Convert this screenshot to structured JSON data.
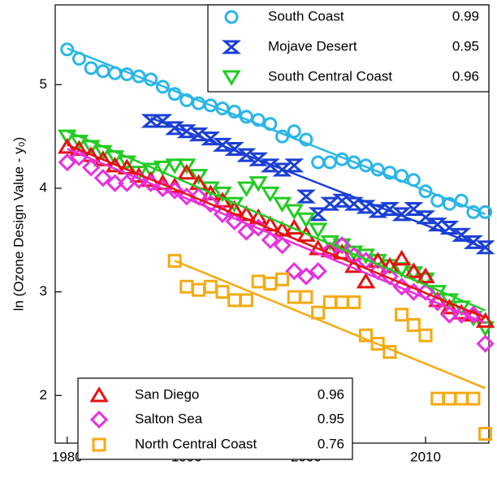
{
  "chart_data": {
    "type": "scatter",
    "y_label": "ln (Ozone Design Value - y₀)",
    "xlim": [
      1979,
      2015.3
    ],
    "xticks": [
      1980,
      1990,
      2000,
      2010
    ],
    "ylim": [
      1.54,
      5.77
    ],
    "yticks": [
      2,
      3,
      4,
      5
    ],
    "series": [
      {
        "name": "South Coast",
        "color": "#29b6e8",
        "marker": "circle",
        "legend": "upper right",
        "r": 0.99,
        "x": [
          1980,
          1981,
          1982,
          1983,
          1984,
          1985,
          1986,
          1987,
          1988,
          1989,
          1990,
          1991,
          1992,
          1993,
          1994,
          1995,
          1996,
          1997,
          1998,
          1999,
          2000,
          2001,
          2002,
          2003,
          2004,
          2005,
          2006,
          2007,
          2008,
          2009,
          2010,
          2011,
          2012,
          2013,
          2014,
          2015
        ],
        "values": [
          5.34,
          5.25,
          5.16,
          5.13,
          5.11,
          5.1,
          5.08,
          5.05,
          4.98,
          4.91,
          4.85,
          4.82,
          4.8,
          4.77,
          4.74,
          4.69,
          4.66,
          4.62,
          4.5,
          4.55,
          4.47,
          4.25,
          4.25,
          4.28,
          4.25,
          4.22,
          4.18,
          4.15,
          4.12,
          4.08,
          3.97,
          3.88,
          3.85,
          3.88,
          3.77,
          3.77
        ],
        "fit": {
          "x": [
            1980,
            2015
          ],
          "values": [
            5.35,
            3.75
          ]
        }
      },
      {
        "name": "Mojave Desert",
        "color": "#1a3fd6",
        "marker": "hourglass",
        "legend": "upper right",
        "r": 0.95,
        "x": [
          1987,
          1988,
          1989,
          1990,
          1991,
          1992,
          1993,
          1994,
          1995,
          1996,
          1997,
          1998,
          1999,
          2000,
          2001,
          2002,
          2003,
          2004,
          2005,
          2006,
          2007,
          2008,
          2009,
          2010,
          2011,
          2012,
          2013,
          2014,
          2015
        ],
        "values": [
          4.65,
          4.65,
          4.58,
          4.55,
          4.52,
          4.48,
          4.42,
          4.38,
          4.32,
          4.28,
          4.22,
          4.18,
          4.22,
          3.92,
          3.75,
          3.85,
          3.88,
          3.85,
          3.82,
          3.78,
          3.8,
          3.75,
          3.8,
          3.72,
          3.65,
          3.62,
          3.55,
          3.48,
          3.43
        ],
        "fit": {
          "x": [
            1987,
            2015
          ],
          "values": [
            4.68,
            3.42
          ]
        }
      },
      {
        "name": "South Central Coast",
        "color": "#22cc22",
        "marker": "triangle-down",
        "legend": "upper right",
        "r": 0.96,
        "x": [
          1980,
          1981,
          1982,
          1983,
          1984,
          1985,
          1986,
          1987,
          1988,
          1989,
          1990,
          1991,
          1992,
          1993,
          1994,
          1995,
          1996,
          1997,
          1998,
          1999,
          2000,
          2001,
          2002,
          2003,
          2004,
          2005,
          2006,
          2007,
          2008,
          2009,
          2010,
          2011,
          2012,
          2013,
          2014,
          2015
        ],
        "values": [
          4.5,
          4.45,
          4.4,
          4.35,
          4.3,
          4.25,
          4.15,
          4.18,
          4.2,
          4.22,
          4.22,
          4.12,
          4.0,
          3.95,
          3.85,
          4.0,
          4.05,
          3.95,
          3.85,
          3.78,
          3.7,
          3.6,
          3.48,
          3.45,
          3.38,
          3.35,
          3.3,
          3.25,
          3.22,
          3.18,
          3.12,
          3.0,
          2.92,
          2.85,
          2.75,
          2.65
        ],
        "fit": {
          "x": [
            1980,
            2015
          ],
          "values": [
            4.55,
            2.82
          ]
        }
      },
      {
        "name": "San Diego",
        "color": "#e81010",
        "marker": "triangle-up",
        "legend": "lower left",
        "r": 0.96,
        "x": [
          1980,
          1981,
          1982,
          1983,
          1984,
          1985,
          1986,
          1987,
          1988,
          1989,
          1990,
          1991,
          1992,
          1993,
          1994,
          1995,
          1996,
          1997,
          1998,
          1999,
          2000,
          2001,
          2002,
          2003,
          2004,
          2005,
          2006,
          2007,
          2008,
          2009,
          2010,
          2011,
          2012,
          2013,
          2014,
          2015
        ],
        "values": [
          4.4,
          4.38,
          4.32,
          4.28,
          4.22,
          4.2,
          4.12,
          4.08,
          4.05,
          4.02,
          4.15,
          4.05,
          3.95,
          3.88,
          3.8,
          3.75,
          3.72,
          3.65,
          3.6,
          3.62,
          3.55,
          3.42,
          3.4,
          3.38,
          3.25,
          3.1,
          3.3,
          3.25,
          3.32,
          3.2,
          3.15,
          2.92,
          2.85,
          2.8,
          2.78,
          2.72
        ],
        "fit": {
          "x": [
            1980,
            2015
          ],
          "values": [
            4.42,
            2.75
          ]
        }
      },
      {
        "name": "Salton Sea",
        "color": "#e830e0",
        "marker": "diamond",
        "legend": "lower left",
        "r": 0.95,
        "x": [
          1980,
          1981,
          1982,
          1983,
          1984,
          1985,
          1986,
          1987,
          1988,
          1989,
          1990,
          1991,
          1992,
          1993,
          1994,
          1995,
          1996,
          1997,
          1998,
          1999,
          2000,
          2001,
          2002,
          2003,
          2004,
          2005,
          2006,
          2007,
          2008,
          2009,
          2010,
          2011,
          2012,
          2013,
          2014,
          2015
        ],
        "values": [
          4.25,
          4.3,
          4.2,
          4.1,
          4.05,
          4.05,
          4.08,
          4.05,
          4.0,
          3.98,
          3.92,
          3.92,
          3.85,
          3.75,
          3.68,
          3.58,
          3.62,
          3.5,
          3.45,
          3.2,
          3.15,
          3.2,
          3.4,
          3.45,
          3.35,
          3.3,
          3.2,
          3.15,
          3.05,
          3.0,
          3.0,
          2.9,
          2.78,
          2.78,
          2.78,
          2.5
        ],
        "fit": {
          "x": [
            1980,
            2015
          ],
          "values": [
            4.38,
            2.7
          ]
        }
      },
      {
        "name": "North Central Coast",
        "color": "#f5aa10",
        "marker": "square",
        "legend": "lower left",
        "r": 0.76,
        "x": [
          1989,
          1990,
          1991,
          1992,
          1993,
          1994,
          1995,
          1996,
          1997,
          1998,
          1999,
          2000,
          2001,
          2002,
          2003,
          2004,
          2005,
          2006,
          2007,
          2008,
          2009,
          2010,
          2011,
          2012,
          2013,
          2014,
          2015
        ],
        "values": [
          3.3,
          3.05,
          3.02,
          3.05,
          3.0,
          2.92,
          2.92,
          3.1,
          3.08,
          3.12,
          2.95,
          2.95,
          2.8,
          2.9,
          2.9,
          2.9,
          2.58,
          2.5,
          2.42,
          2.78,
          2.68,
          2.58,
          1.97,
          1.97,
          1.97,
          1.97,
          1.63
        ],
        "fit": {
          "x": [
            1989,
            2015
          ],
          "values": [
            3.3,
            2.07
          ]
        }
      }
    ]
  }
}
